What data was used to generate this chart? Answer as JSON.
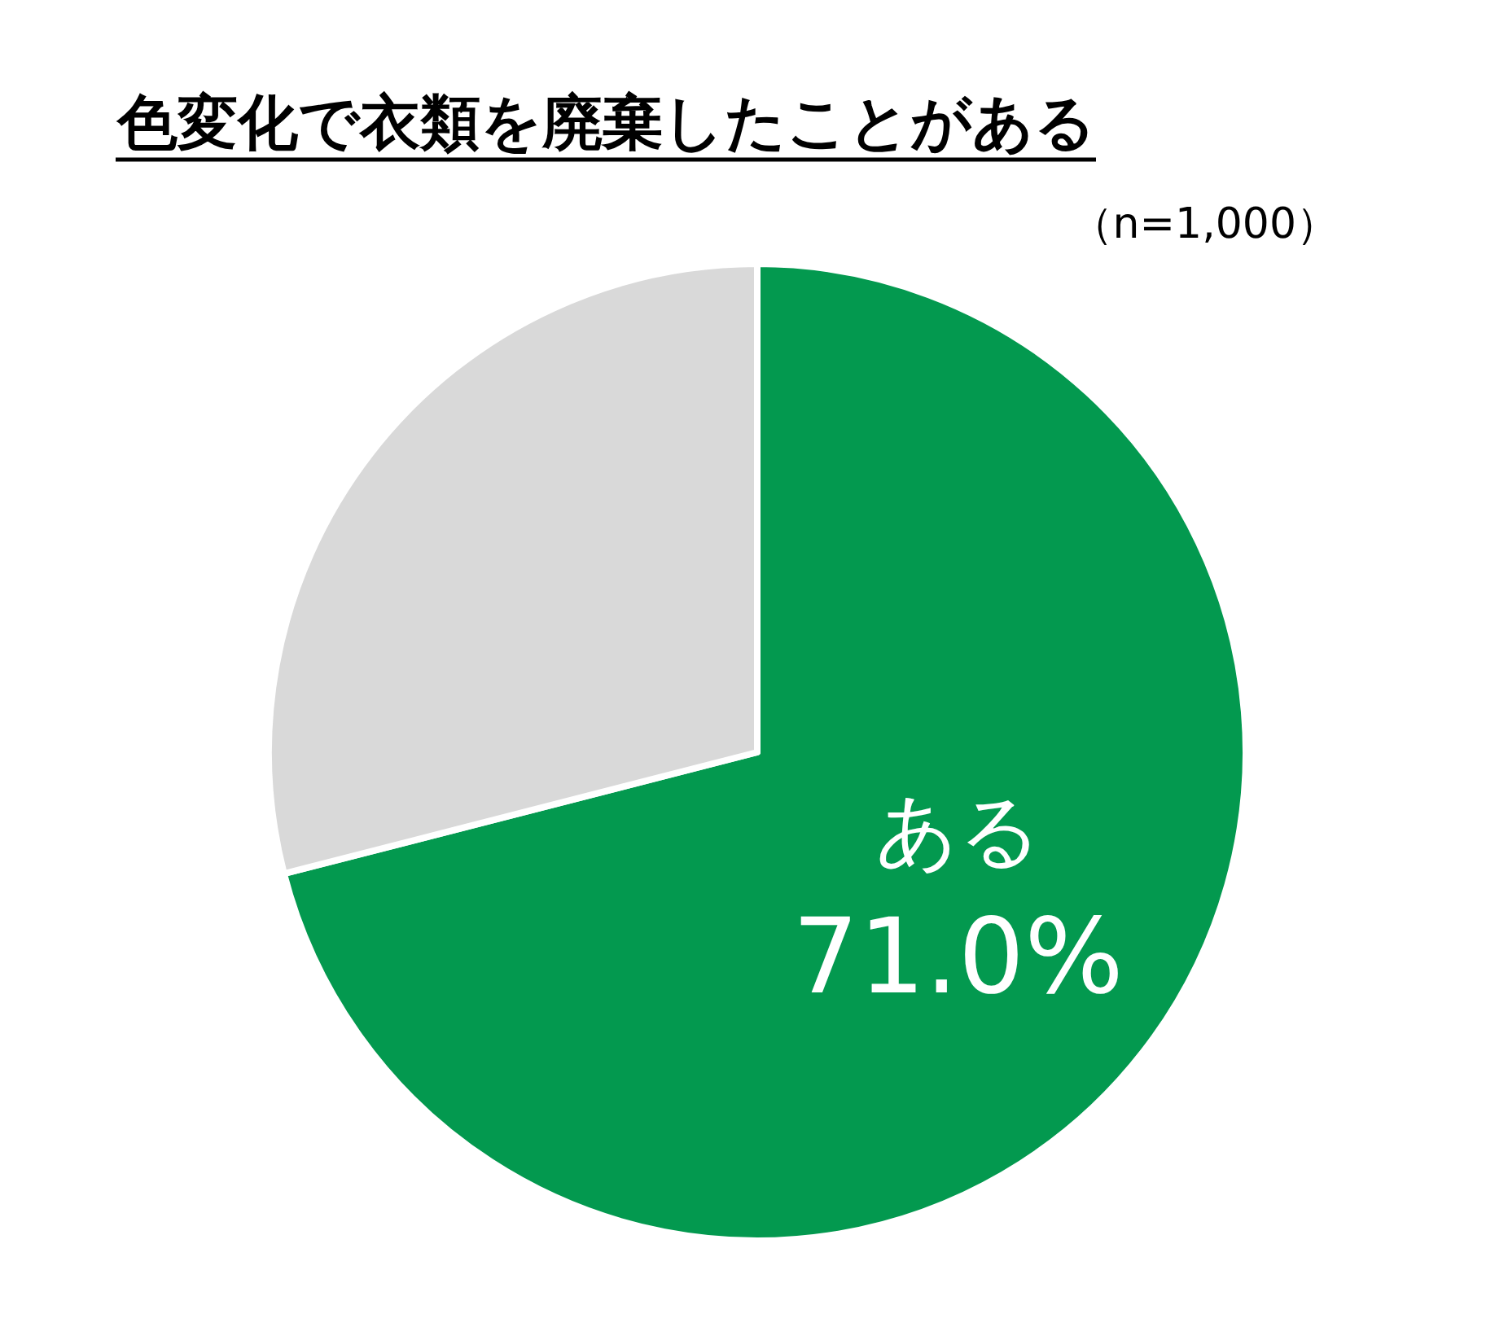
{
  "chart_data": {
    "type": "pie",
    "title": "色変化で衣類を廃棄したことがある",
    "subtitle": "（n=1,000）",
    "categories": [
      "ある",
      null
    ],
    "values": [
      71.0,
      29.0
    ],
    "colors": [
      "#03994f",
      "#d9d9d9"
    ],
    "value_labels": [
      "71.0%",
      null
    ]
  }
}
